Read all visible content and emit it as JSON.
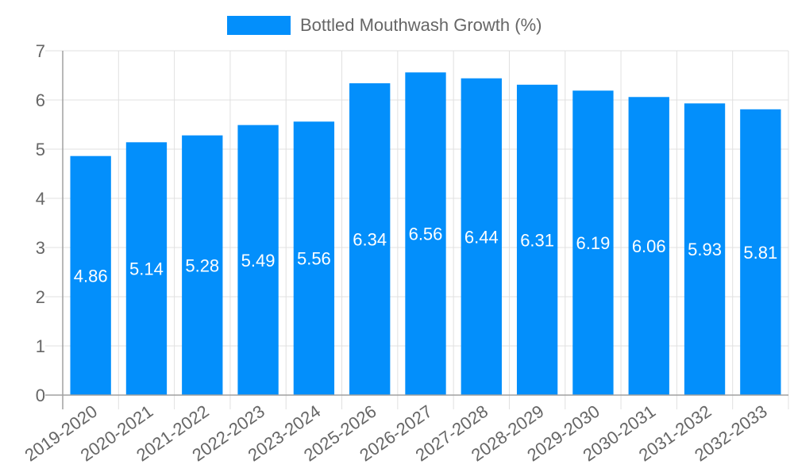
{
  "legend": {
    "label": "Bottled Mouthwash Growth (%)",
    "color": "#038ffb"
  },
  "colors": {
    "bar": "#038ffb",
    "bar_label": "#ffffff",
    "grid": "#e0e0e0",
    "axis": "#a0a0a0",
    "tick_text": "#666666"
  },
  "chart_data": {
    "type": "bar",
    "title": "",
    "xlabel": "",
    "ylabel": "",
    "legend": [
      "Bottled Mouthwash Growth (%)"
    ],
    "legend_position": "top",
    "grid": true,
    "ylim": [
      0,
      7
    ],
    "yticks": [
      0,
      1,
      2,
      3,
      4,
      5,
      6,
      7
    ],
    "categories": [
      "2019-2020",
      "2020-2021",
      "2021-2022",
      "2022-2023",
      "2023-2024",
      "2025-2026",
      "2026-2027",
      "2027-2028",
      "2028-2029",
      "2029-2030",
      "2030-2031",
      "2031-2032",
      "2032-2033"
    ],
    "series": [
      {
        "name": "Bottled Mouthwash Growth (%)",
        "values": [
          4.86,
          5.14,
          5.28,
          5.49,
          5.56,
          6.34,
          6.56,
          6.44,
          6.31,
          6.19,
          6.06,
          5.93,
          5.81
        ]
      }
    ],
    "data_labels": [
      "4.86",
      "5.14",
      "5.28",
      "5.49",
      "5.56",
      "6.34",
      "6.56",
      "6.44",
      "6.31",
      "6.19",
      "6.06",
      "5.93",
      "5.81"
    ]
  }
}
